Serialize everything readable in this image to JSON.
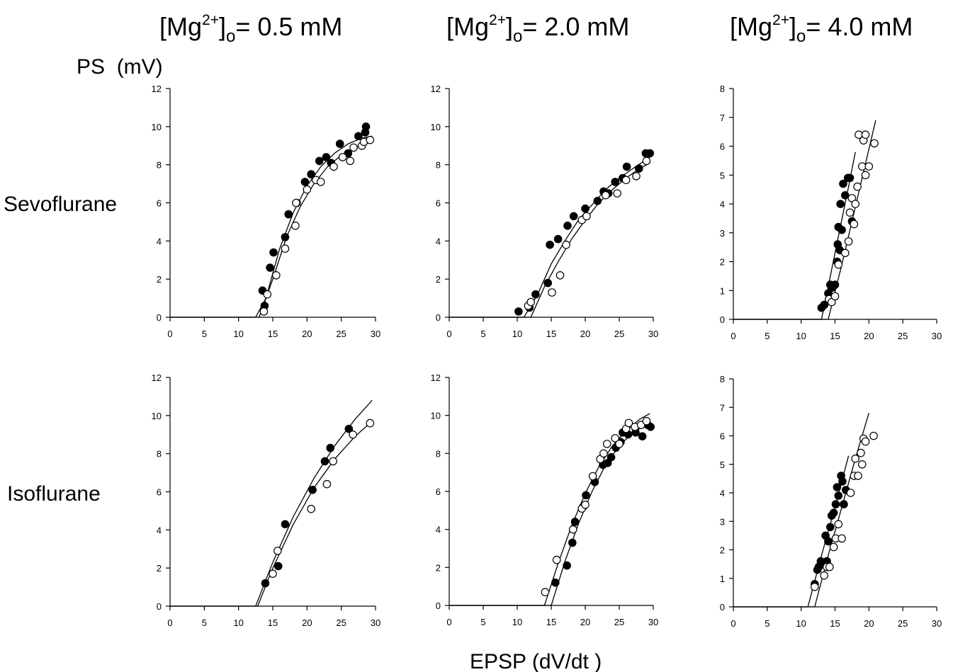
{
  "chart_data": [
    {
      "type": "scatter",
      "row": "Sevoflurane",
      "column": "[Mg2+]o = 0.5 mM",
      "xlim": [
        0,
        30
      ],
      "ylim": [
        0,
        12
      ],
      "xticks": [
        0,
        5,
        10,
        15,
        20,
        25,
        30
      ],
      "yticks": [
        0,
        2,
        4,
        6,
        8,
        10,
        12
      ],
      "grid": false,
      "series": [
        {
          "marker": "filled",
          "x": [
            13.5,
            13.8,
            14.6,
            15.1,
            16.8,
            17.3,
            18.5,
            19.7,
            20.6,
            21.8,
            22.8,
            23.5,
            24.8,
            26.0,
            27.5,
            28.5,
            28.6
          ],
          "y": [
            1.4,
            0.6,
            2.6,
            3.4,
            4.2,
            5.4,
            6.0,
            7.1,
            7.5,
            8.2,
            8.4,
            8.1,
            9.1,
            8.6,
            9.5,
            9.7,
            10.0
          ],
          "fit": [
            [
              12.5,
              0
            ],
            [
              14,
              1.0
            ],
            [
              16,
              3.6
            ],
            [
              18,
              5.5
            ],
            [
              20,
              6.9
            ],
            [
              22,
              7.9
            ],
            [
              24,
              8.6
            ],
            [
              26,
              9.1
            ],
            [
              28,
              9.4
            ],
            [
              29.5,
              9.5
            ]
          ]
        },
        {
          "marker": "open",
          "x": [
            13.7,
            14.2,
            15.5,
            16.8,
            18.3,
            18.4,
            20.0,
            21.3,
            22.0,
            23.9,
            25.2,
            26.3,
            26.8,
            28.0,
            28.3,
            29.2
          ],
          "y": [
            0.3,
            1.2,
            2.2,
            3.6,
            4.8,
            6.0,
            6.7,
            7.2,
            7.1,
            7.9,
            8.4,
            8.2,
            8.9,
            9.0,
            9.2,
            9.3
          ],
          "fit": [
            [
              13,
              0
            ],
            [
              15,
              2.0
            ],
            [
              17,
              4.2
            ],
            [
              19,
              5.8
            ],
            [
              21,
              7.0
            ],
            [
              23,
              7.9
            ],
            [
              25,
              8.5
            ],
            [
              27,
              8.9
            ],
            [
              29.5,
              9.2
            ]
          ]
        }
      ]
    },
    {
      "type": "scatter",
      "row": "Sevoflurane",
      "column": "[Mg2+]o = 2.0 mM",
      "xlim": [
        0,
        30
      ],
      "ylim": [
        0,
        12
      ],
      "xticks": [
        0,
        5,
        10,
        15,
        20,
        25,
        30
      ],
      "yticks": [
        0,
        2,
        4,
        6,
        8,
        10,
        12
      ],
      "grid": false,
      "series": [
        {
          "marker": "filled",
          "x": [
            10.2,
            11.8,
            12.7,
            14.5,
            14.8,
            16.0,
            17.4,
            18.3,
            20.0,
            21.8,
            22.7,
            23.4,
            24.4,
            25.5,
            26.1,
            27.9,
            28.9,
            29.5
          ],
          "y": [
            0.3,
            0.5,
            1.2,
            1.8,
            3.8,
            4.1,
            4.8,
            5.3,
            5.7,
            6.1,
            6.6,
            6.5,
            7.1,
            7.3,
            7.9,
            7.8,
            8.6,
            8.6
          ],
          "fit": [
            [
              11,
              0
            ],
            [
              13,
              1.2
            ],
            [
              15,
              2.8
            ],
            [
              17,
              4.0
            ],
            [
              19,
              5.1
            ],
            [
              21,
              5.9
            ],
            [
              23,
              6.7
            ],
            [
              25,
              7.3
            ],
            [
              27,
              7.8
            ],
            [
              29.5,
              8.4
            ]
          ]
        },
        {
          "marker": "open",
          "x": [
            11.6,
            12.0,
            15.1,
            16.3,
            17.2,
            19.5,
            20.2,
            23.0,
            24.7,
            26.0,
            27.5,
            29.0
          ],
          "y": [
            0.6,
            0.8,
            1.3,
            2.2,
            3.8,
            5.1,
            5.3,
            6.4,
            6.5,
            7.2,
            7.4,
            8.2
          ],
          "fit": [
            [
              12,
              0
            ],
            [
              14,
              1.6
            ],
            [
              16,
              2.9
            ],
            [
              18,
              4.1
            ],
            [
              20,
              5.1
            ],
            [
              22,
              6.0
            ],
            [
              24,
              6.7
            ],
            [
              26,
              7.3
            ],
            [
              28,
              7.8
            ],
            [
              29.5,
              8.1
            ]
          ]
        }
      ]
    },
    {
      "type": "scatter",
      "row": "Sevoflurane",
      "column": "[Mg2+]o = 4.0 mM",
      "xlim": [
        0,
        30
      ],
      "ylim": [
        0,
        8
      ],
      "xticks": [
        0,
        5,
        10,
        15,
        20,
        25,
        30
      ],
      "yticks": [
        0,
        1,
        2,
        3,
        4,
        5,
        6,
        7,
        8
      ],
      "grid": false,
      "series": [
        {
          "marker": "filled",
          "x": [
            13.0,
            13.4,
            14.0,
            14.3,
            14.6,
            15.0,
            15.3,
            15.4,
            15.5,
            15.7,
            15.8,
            16.0,
            16.2,
            16.5,
            16.9,
            17.2,
            17.5
          ],
          "y": [
            0.4,
            0.5,
            0.9,
            1.2,
            1.1,
            1.2,
            2.0,
            2.6,
            3.2,
            2.4,
            4.0,
            3.1,
            4.7,
            4.3,
            4.9,
            4.9,
            3.4
          ],
          "fit": [
            [
              13,
              0
            ],
            [
              15,
              2.3
            ],
            [
              17,
              4.6
            ],
            [
              18,
              5.8
            ]
          ]
        },
        {
          "marker": "open",
          "x": [
            14.1,
            14.5,
            15.0,
            15.5,
            16.5,
            17.0,
            17.2,
            17.5,
            17.8,
            18.0,
            18.3,
            18.5,
            19.0,
            19.2,
            19.5,
            19.5,
            20.0,
            20.8
          ],
          "y": [
            0.7,
            0.6,
            0.8,
            1.9,
            2.3,
            2.7,
            3.7,
            4.2,
            3.3,
            4.0,
            4.6,
            6.4,
            5.3,
            6.2,
            5.0,
            6.4,
            5.3,
            6.1
          ],
          "fit": [
            [
              14,
              0
            ],
            [
              16,
              1.9
            ],
            [
              18,
              3.9
            ],
            [
              20,
              5.9
            ],
            [
              21,
              6.9
            ]
          ]
        }
      ]
    },
    {
      "type": "scatter",
      "row": "Isoflurane",
      "column": "[Mg2+]o = 0.5 mM",
      "xlim": [
        0,
        30
      ],
      "ylim": [
        0,
        12
      ],
      "xticks": [
        0,
        5,
        10,
        15,
        20,
        25,
        30
      ],
      "yticks": [
        0,
        2,
        4,
        6,
        8,
        10,
        12
      ],
      "grid": false,
      "series": [
        {
          "marker": "filled",
          "x": [
            13.9,
            15.8,
            16.8,
            20.8,
            22.6,
            23.4,
            26.1
          ],
          "y": [
            1.2,
            2.1,
            4.3,
            6.1,
            7.6,
            8.3,
            9.3
          ],
          "fit": [
            [
              12.5,
              0
            ],
            [
              15,
              2.3
            ],
            [
              18,
              4.7
            ],
            [
              21,
              6.7
            ],
            [
              24,
              8.4
            ],
            [
              27,
              9.8
            ],
            [
              29.5,
              10.8
            ]
          ]
        },
        {
          "marker": "open",
          "x": [
            15.0,
            15.7,
            20.6,
            22.9,
            23.8,
            26.7,
            29.2
          ],
          "y": [
            1.7,
            2.9,
            5.1,
            6.4,
            7.6,
            9.0,
            9.6
          ],
          "fit": [
            [
              12.8,
              0
            ],
            [
              15,
              2.0
            ],
            [
              18,
              4.3
            ],
            [
              21,
              6.2
            ],
            [
              24,
              7.7
            ],
            [
              27,
              8.9
            ],
            [
              29.5,
              9.7
            ]
          ]
        }
      ]
    },
    {
      "type": "scatter",
      "row": "Isoflurane",
      "column": "[Mg2+]o = 2.0 mM",
      "xlim": [
        0,
        30
      ],
      "ylim": [
        0,
        12
      ],
      "xticks": [
        0,
        5,
        10,
        15,
        20,
        25,
        30
      ],
      "yticks": [
        0,
        2,
        4,
        6,
        8,
        10,
        12
      ],
      "grid": false,
      "series": [
        {
          "marker": "filled",
          "x": [
            15.6,
            17.3,
            18.1,
            18.5,
            19.7,
            20.1,
            21.4,
            22.6,
            23.3,
            23.8,
            24.5,
            25.2,
            25.5,
            26.3,
            27.4,
            28.4,
            29.2,
            29.6
          ],
          "y": [
            1.2,
            2.1,
            3.3,
            4.4,
            5.2,
            5.8,
            6.5,
            7.4,
            7.5,
            7.8,
            8.3,
            8.6,
            9.1,
            9.0,
            9.1,
            8.9,
            9.5,
            9.4
          ],
          "fit": [
            [
              15,
              0
            ],
            [
              17,
              2.3
            ],
            [
              19,
              4.3
            ],
            [
              21,
              6.0
            ],
            [
              23,
              7.4
            ],
            [
              25,
              8.4
            ],
            [
              27,
              9.1
            ],
            [
              29.5,
              9.6
            ]
          ]
        },
        {
          "marker": "open",
          "x": [
            14.1,
            15.8,
            18.2,
            19.5,
            20.0,
            21.1,
            22.2,
            22.7,
            23.2,
            24.4,
            25.0,
            26.0,
            26.4,
            27.3,
            28.2,
            29.0
          ],
          "y": [
            0.7,
            2.4,
            4.0,
            5.1,
            5.3,
            6.8,
            7.7,
            8.0,
            8.5,
            8.8,
            8.5,
            9.3,
            9.6,
            9.4,
            9.5,
            9.7
          ],
          "fit": [
            [
              14,
              0
            ],
            [
              16,
              2.2
            ],
            [
              18,
              4.2
            ],
            [
              20,
              5.9
            ],
            [
              22,
              7.3
            ],
            [
              24,
              8.4
            ],
            [
              26,
              9.2
            ],
            [
              28,
              9.8
            ],
            [
              29.5,
              10.1
            ]
          ]
        }
      ]
    },
    {
      "type": "scatter",
      "row": "Isoflurane",
      "column": "[Mg2+]o = 4.0 mM",
      "xlim": [
        0,
        30
      ],
      "ylim": [
        0,
        8
      ],
      "xticks": [
        0,
        5,
        10,
        15,
        20,
        25,
        30
      ],
      "yticks": [
        0,
        1,
        2,
        3,
        4,
        5,
        6,
        7,
        8
      ],
      "grid": false,
      "series": [
        {
          "marker": "filled",
          "x": [
            12.0,
            12.4,
            12.6,
            12.9,
            13.2,
            13.6,
            13.8,
            14.0,
            14.3,
            14.5,
            14.8,
            15.1,
            15.3,
            15.5,
            15.9,
            16.1,
            16.3,
            16.6
          ],
          "y": [
            0.8,
            1.3,
            1.4,
            1.6,
            1.5,
            2.5,
            1.6,
            2.3,
            2.8,
            3.2,
            3.3,
            3.6,
            4.2,
            3.9,
            4.6,
            4.4,
            3.6,
            4.1
          ],
          "fit": [
            [
              11,
              0
            ],
            [
              13,
              1.8
            ],
            [
              15,
              3.5
            ],
            [
              17,
              5.3
            ]
          ]
        },
        {
          "marker": "open",
          "x": [
            12.0,
            13.4,
            13.8,
            14.2,
            14.8,
            15.1,
            15.5,
            16.0,
            17.3,
            17.8,
            18.0,
            18.4,
            18.8,
            19.0,
            19.2,
            19.5,
            20.7
          ],
          "y": [
            0.7,
            1.1,
            1.4,
            1.4,
            2.1,
            2.4,
            2.9,
            2.4,
            4.0,
            4.6,
            5.2,
            4.6,
            5.4,
            5.0,
            5.9,
            5.8,
            6.0
          ],
          "fit": [
            [
              12,
              0
            ],
            [
              14,
              1.8
            ],
            [
              16,
              3.5
            ],
            [
              18,
              5.2
            ],
            [
              20,
              6.8
            ]
          ]
        }
      ]
    }
  ],
  "labels": {
    "col_titles": [
      {
        "prefix": "[Mg",
        "sup": "2+",
        "mid": "]",
        "sub": "o",
        "suffix": "= 0.5 mM"
      },
      {
        "prefix": "[Mg",
        "sup": "2+",
        "mid": "]",
        "sub": "o",
        "suffix": "= 2.0 mM"
      },
      {
        "prefix": "[Mg",
        "sup": "2+",
        "mid": "]",
        "sub": "o",
        "suffix": "= 4.0 mM"
      }
    ],
    "y_axis_label": "PS  (mV)",
    "row_labels": [
      "Sevoflurane",
      "Isoflurane"
    ],
    "x_axis_label": "EPSP (dV/dt )"
  }
}
